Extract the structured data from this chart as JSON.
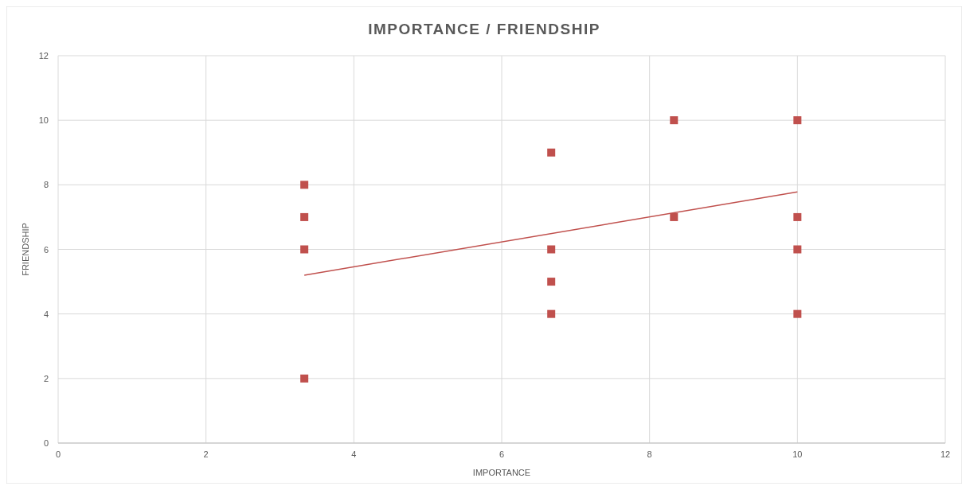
{
  "chart_data": {
    "type": "scatter",
    "title": "IMPORTANCE  / FRIENDSHIP",
    "xlabel": "IMPORTANCE",
    "ylabel": "FRIENDSHIP",
    "series": [
      {
        "marker": "square",
        "color": "#c0504d",
        "x": [
          3.33,
          3.33,
          3.33,
          3.33,
          6.67,
          6.67,
          6.67,
          6.67,
          8.33,
          8.33,
          10,
          10,
          10,
          10
        ],
        "values": [
          8,
          7,
          6,
          2,
          9,
          6,
          5,
          4,
          10,
          7,
          10,
          7,
          6,
          4
        ]
      },
      {
        "type": "line",
        "color": "#c0504d",
        "x": [
          3.33,
          10
        ],
        "values": [
          5.2,
          7.78
        ]
      }
    ],
    "xlim": [
      0,
      12
    ],
    "xticks": [
      0,
      2,
      4,
      6,
      8,
      10,
      12
    ],
    "ylim": [
      0,
      12
    ],
    "yticks": [
      0,
      2,
      4,
      6,
      8,
      10,
      12
    ],
    "grid": true,
    "line_style": "solid"
  }
}
